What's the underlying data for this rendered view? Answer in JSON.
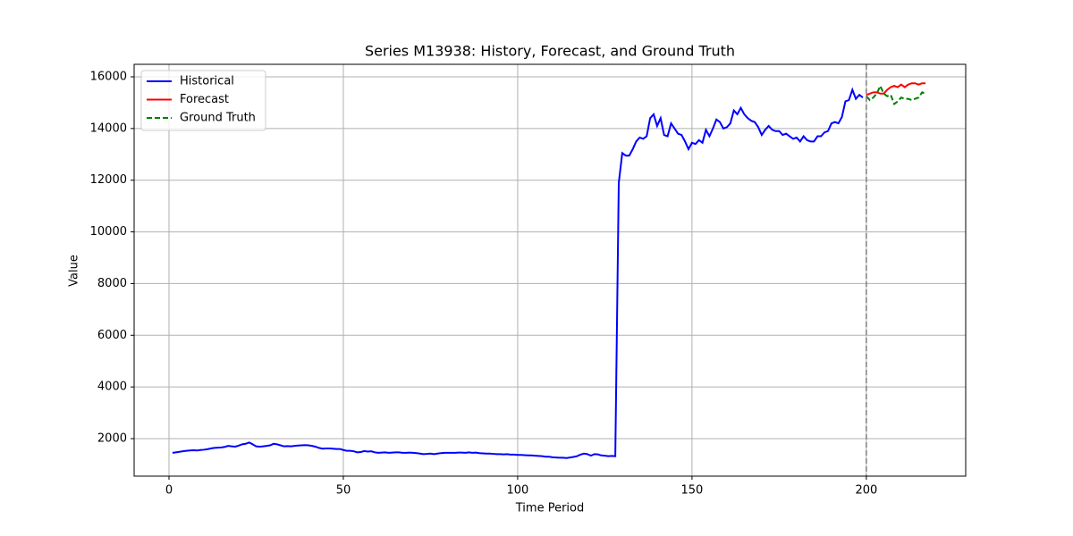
{
  "chart_data": {
    "type": "line",
    "title": "Series M13938: History, Forecast, and Ground Truth",
    "x_label": "Time Period",
    "y_label": "Value",
    "xlim": [
      -10,
      228.5
    ],
    "ylim": [
      548,
      16484
    ],
    "xticks": [
      0,
      50,
      100,
      150,
      200
    ],
    "yticks": [
      2000,
      4000,
      6000,
      8000,
      10000,
      12000,
      14000,
      16000
    ],
    "grid": true,
    "legend": "upper-left",
    "vline_x": 200,
    "vline_color": "#808080",
    "series": [
      {
        "name": "Historical",
        "color": "#0000ff",
        "style": "solid",
        "x": [
          1,
          2,
          3,
          4,
          5,
          6,
          7,
          8,
          9,
          10,
          11,
          12,
          13,
          14,
          15,
          16,
          17,
          18,
          19,
          20,
          21,
          22,
          23,
          24,
          25,
          26,
          27,
          28,
          29,
          30,
          31,
          32,
          33,
          34,
          35,
          36,
          37,
          38,
          39,
          40,
          41,
          42,
          43,
          44,
          45,
          46,
          47,
          48,
          49,
          50,
          51,
          52,
          53,
          54,
          55,
          56,
          57,
          58,
          59,
          60,
          61,
          62,
          63,
          64,
          65,
          66,
          67,
          68,
          69,
          70,
          71,
          72,
          73,
          74,
          75,
          76,
          77,
          78,
          79,
          80,
          81,
          82,
          83,
          84,
          85,
          86,
          87,
          88,
          89,
          90,
          91,
          92,
          93,
          94,
          95,
          96,
          97,
          98,
          99,
          100,
          101,
          102,
          103,
          104,
          105,
          106,
          107,
          108,
          109,
          110,
          111,
          112,
          113,
          114,
          115,
          116,
          117,
          118,
          119,
          120,
          121,
          122,
          123,
          124,
          125,
          126,
          127,
          128,
          129,
          130,
          131,
          132,
          133,
          134,
          135,
          136,
          137,
          138,
          139,
          140,
          141,
          142,
          143,
          144,
          145,
          146,
          147,
          148,
          149,
          150,
          151,
          152,
          153,
          154,
          155,
          156,
          157,
          158,
          159,
          160,
          161,
          162,
          163,
          164,
          165,
          166,
          167,
          168,
          169,
          170,
          171,
          172,
          173,
          174,
          175,
          176,
          177,
          178,
          179,
          180,
          181,
          182,
          183,
          184,
          185,
          186,
          187,
          188,
          189,
          190,
          191,
          192,
          193,
          194,
          195,
          196,
          197,
          198,
          199
        ],
        "values": [
          1450,
          1470,
          1490,
          1510,
          1530,
          1540,
          1550,
          1540,
          1560,
          1570,
          1590,
          1620,
          1640,
          1650,
          1660,
          1680,
          1720,
          1700,
          1690,
          1730,
          1780,
          1800,
          1850,
          1780,
          1700,
          1690,
          1700,
          1720,
          1740,
          1800,
          1780,
          1740,
          1700,
          1710,
          1700,
          1720,
          1730,
          1740,
          1750,
          1740,
          1720,
          1690,
          1640,
          1610,
          1620,
          1620,
          1610,
          1600,
          1600,
          1560,
          1530,
          1530,
          1510,
          1470,
          1480,
          1520,
          1500,
          1510,
          1470,
          1450,
          1460,
          1470,
          1450,
          1460,
          1470,
          1470,
          1450,
          1450,
          1460,
          1450,
          1440,
          1420,
          1400,
          1410,
          1420,
          1400,
          1420,
          1440,
          1450,
          1450,
          1450,
          1450,
          1460,
          1460,
          1450,
          1470,
          1450,
          1460,
          1440,
          1430,
          1420,
          1420,
          1410,
          1400,
          1400,
          1390,
          1400,
          1380,
          1380,
          1370,
          1370,
          1360,
          1350,
          1350,
          1340,
          1330,
          1320,
          1300,
          1300,
          1280,
          1270,
          1260,
          1260,
          1250,
          1270,
          1290,
          1320,
          1380,
          1420,
          1400,
          1340,
          1400,
          1390,
          1350,
          1340,
          1320,
          1330,
          1320,
          11900,
          13050,
          12950,
          12950,
          13200,
          13500,
          13650,
          13600,
          13700,
          14400,
          14550,
          14100,
          14400,
          13750,
          13700,
          14200,
          14000,
          13800,
          13750,
          13500,
          13200,
          13450,
          13400,
          13550,
          13450,
          13950,
          13700,
          14000,
          14350,
          14250,
          14000,
          14050,
          14200,
          14700,
          14550,
          14800,
          14550,
          14400,
          14300,
          14250,
          14050,
          13750,
          13950,
          14100,
          13950,
          13900,
          13900,
          13750,
          13800,
          13700,
          13600,
          13650,
          13500,
          13700,
          13550,
          13500,
          13500,
          13700,
          13700,
          13850,
          13900,
          14200,
          14250,
          14200,
          14450,
          15050,
          15100,
          15500,
          15150,
          15300,
          15200
        ]
      },
      {
        "name": "Forecast",
        "color": "#ff0000",
        "style": "solid",
        "x": [
          200,
          201,
          202,
          203,
          204,
          205,
          206,
          207,
          208,
          209,
          210,
          211,
          212,
          213,
          214,
          215,
          216,
          217
        ],
        "values": [
          15300,
          15350,
          15400,
          15400,
          15350,
          15350,
          15500,
          15600,
          15650,
          15600,
          15700,
          15600,
          15700,
          15750,
          15750,
          15700,
          15750,
          15750
        ]
      },
      {
        "name": "Ground Truth",
        "color": "#008000",
        "style": "dashed",
        "x": [
          200,
          201,
          202,
          203,
          204,
          205,
          206,
          207,
          208,
          209,
          210,
          211,
          212,
          213,
          214,
          215,
          216,
          217
        ],
        "values": [
          15250,
          15100,
          15200,
          15350,
          15650,
          15350,
          15250,
          15300,
          14950,
          15050,
          15200,
          15150,
          15150,
          15100,
          15150,
          15200,
          15400,
          15350
        ]
      }
    ]
  }
}
